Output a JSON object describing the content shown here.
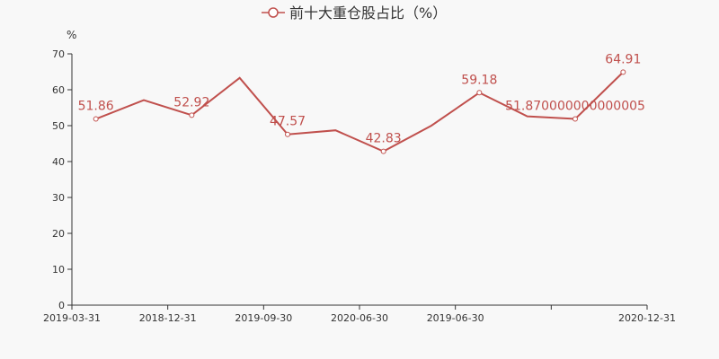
{
  "chart_data": {
    "type": "line",
    "title": "前十大重仓股占比（%）",
    "unit_label": "%",
    "x_tick_labels": [
      "2019-03-31",
      "2018-12-31",
      "2019-09-30",
      "2020-06-30",
      "2019-06-30",
      "",
      "2020-12-31"
    ],
    "ylim": [
      0,
      70
    ],
    "yticks": [
      0,
      10,
      20,
      30,
      40,
      50,
      60,
      70
    ],
    "grid": false,
    "legend_position": "top-center",
    "series": [
      {
        "name": "前十大重仓股占比（%）",
        "color": "#c0504d",
        "values": [
          51.86,
          57.1,
          52.92,
          63.3,
          47.57,
          48.7,
          42.83,
          50.0,
          59.18,
          52.6,
          51.87,
          64.91
        ],
        "labels": [
          "51.86",
          "",
          "52.92",
          "",
          "47.57",
          "",
          "42.83",
          "",
          "59.18",
          "",
          "51.870000000000005",
          "64.91"
        ]
      }
    ]
  }
}
